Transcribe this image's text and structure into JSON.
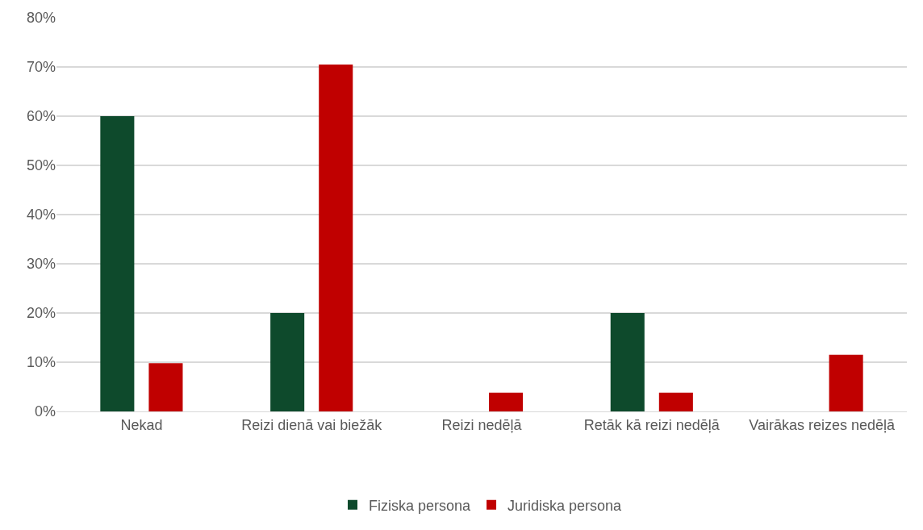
{
  "chart_data": {
    "type": "bar",
    "categories": [
      "Nekad",
      "Reizi dienā vai biežāk",
      "Reizi nedēļā",
      "Retāk kā reizi nedēļā",
      "Vairākas reizes nedēļā"
    ],
    "series": [
      {
        "name": "Fiziska persona",
        "color": "#0e4a2c",
        "values": [
          60,
          20,
          0,
          20,
          0
        ]
      },
      {
        "name": "Juridiska persona",
        "color": "#c00000",
        "values": [
          9.8,
          70.5,
          3.8,
          3.8,
          11.5
        ]
      }
    ],
    "ylim": [
      0,
      80
    ],
    "yticks": [
      {
        "value": 0,
        "label": "0%"
      },
      {
        "value": 10,
        "label": "10%"
      },
      {
        "value": 20,
        "label": "20%"
      },
      {
        "value": 30,
        "label": "30%"
      },
      {
        "value": 40,
        "label": "40%"
      },
      {
        "value": 50,
        "label": "50%"
      },
      {
        "value": 60,
        "label": "60%"
      },
      {
        "value": 70,
        "label": "70%"
      },
      {
        "value": 80,
        "label": "80%"
      }
    ],
    "grid": "y",
    "legend": "bottom"
  }
}
